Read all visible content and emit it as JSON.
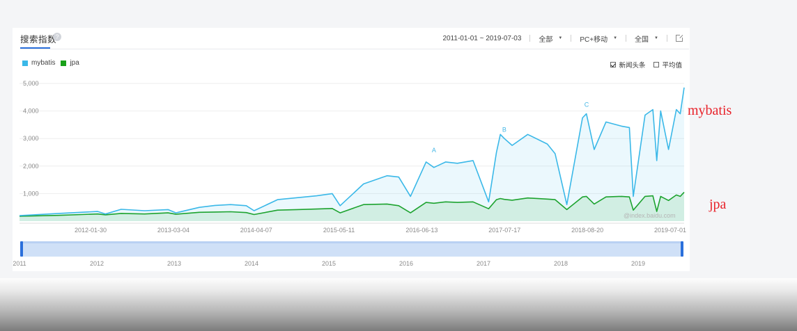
{
  "title": "搜索指数",
  "help_icon": "?",
  "controls": {
    "date_range": "2011-01-01 ~ 2019-07-03",
    "scope": "全部",
    "device": "PC+移动",
    "region": "全国",
    "share_icon": "share-icon"
  },
  "legend": [
    {
      "name": "mybatis",
      "color": "#3ab8e8"
    },
    {
      "name": "jpa",
      "color": "#1aa11a"
    }
  ],
  "options": [
    {
      "label": "新闻头条",
      "checked": true
    },
    {
      "label": "平均值",
      "checked": false
    }
  ],
  "watermark": "@index.baidu.com",
  "side_labels": {
    "mybatis": "mybatis",
    "jpa": "jpa"
  },
  "chart_data": {
    "type": "area",
    "y_ticks": [
      "5,000",
      "4,000",
      "3,000",
      "2,000",
      "1,000"
    ],
    "ylim": [
      0,
      5000
    ],
    "x_tick_labels": [
      "2012-01-30",
      "2013-03-04",
      "2014-04-07",
      "2015-05-11",
      "2016-06-13",
      "2017-07-17",
      "2018-08-20",
      "2019-07-01"
    ],
    "x": [
      2011.0,
      2011.5,
      2012.0,
      2012.1,
      2012.3,
      2012.6,
      2012.9,
      2013.0,
      2013.3,
      2013.5,
      2013.7,
      2013.9,
      2014.0,
      2014.3,
      2014.55,
      2014.8,
      2015.0,
      2015.1,
      2015.4,
      2015.7,
      2015.85,
      2016.0,
      2016.2,
      2016.3,
      2016.45,
      2016.6,
      2016.8,
      2017.0,
      2017.1,
      2017.15,
      2017.2,
      2017.3,
      2017.5,
      2017.75,
      2017.85,
      2018.0,
      2018.2,
      2018.25,
      2018.35,
      2018.5,
      2018.7,
      2018.8,
      2018.85,
      2019.0,
      2019.1,
      2019.15,
      2019.2,
      2019.3,
      2019.4,
      2019.45,
      2019.5
    ],
    "series": [
      {
        "name": "mybatis",
        "color": "#3ab8e8",
        "values": [
          200,
          280,
          350,
          260,
          430,
          380,
          420,
          300,
          500,
          570,
          600,
          560,
          380,
          780,
          850,
          920,
          1000,
          560,
          1350,
          1650,
          1600,
          900,
          2150,
          1950,
          2150,
          2100,
          2200,
          700,
          2500,
          3150,
          3000,
          2750,
          3150,
          2800,
          2450,
          600,
          3750,
          3900,
          2600,
          3600,
          3450,
          3400,
          900,
          3850,
          4050,
          2200,
          4000,
          2600,
          4050,
          3900,
          4850
        ]
      },
      {
        "name": "jpa",
        "color": "#1aa11a",
        "values": [
          180,
          210,
          260,
          230,
          280,
          260,
          300,
          250,
          320,
          330,
          340,
          310,
          240,
          400,
          420,
          440,
          460,
          300,
          600,
          620,
          560,
          300,
          680,
          650,
          700,
          680,
          700,
          450,
          780,
          820,
          790,
          760,
          840,
          800,
          780,
          420,
          880,
          900,
          620,
          880,
          900,
          880,
          400,
          900,
          920,
          350,
          900,
          750,
          950,
          900,
          1050
        ]
      }
    ],
    "annotations": [
      {
        "label": "A",
        "x": 2016.3,
        "y": 2400
      },
      {
        "label": "B",
        "x": 2017.2,
        "y": 3150
      },
      {
        "label": "C",
        "x": 2018.25,
        "y": 4050
      }
    ],
    "slider_years": [
      "2011",
      "2012",
      "2013",
      "2014",
      "2015",
      "2016",
      "2017",
      "2018",
      "2019"
    ]
  }
}
